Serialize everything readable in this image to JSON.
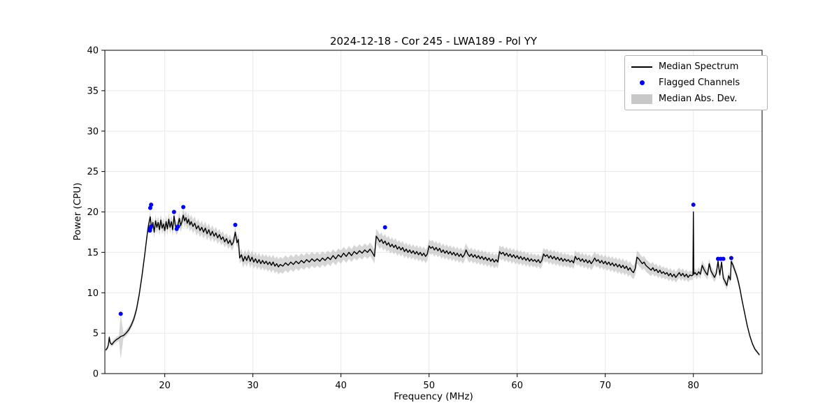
{
  "chart_data": {
    "type": "line",
    "title": "2024-12-18 - Cor 245 - LWA189 - Pol YY",
    "xlabel": "Frequency (MHz)",
    "ylabel": "Power (CPU)",
    "xlim": [
      13.2,
      87.8
    ],
    "ylim": [
      0,
      40
    ],
    "xticks": [
      20,
      30,
      40,
      50,
      60,
      70,
      80
    ],
    "yticks": [
      0,
      5,
      10,
      15,
      20,
      25,
      30,
      35,
      40
    ],
    "grid": true,
    "legend_position": "upper right",
    "colors": {
      "line": "#000000",
      "flagged": "#0000ff",
      "band": "#b5b5b5",
      "grid": "#e8e8e8"
    },
    "legend": [
      {
        "label": "Median Spectrum",
        "type": "line",
        "color": "#000000"
      },
      {
        "label": "Flagged Channels",
        "type": "dot",
        "color": "#0000ff"
      },
      {
        "label": "Median Abs. Dev.",
        "type": "patch",
        "color": "#b5b5b5"
      }
    ],
    "median_spectrum": [
      [
        13.3,
        2.9
      ],
      [
        13.5,
        3.2
      ],
      [
        13.6,
        3.6
      ],
      [
        13.7,
        4.5
      ],
      [
        13.8,
        3.8
      ],
      [
        14.0,
        3.6
      ],
      [
        14.2,
        3.9
      ],
      [
        14.5,
        4.2
      ],
      [
        14.8,
        4.4
      ],
      [
        15.0,
        4.6
      ],
      [
        15.3,
        4.7
      ],
      [
        15.6,
        5.0
      ],
      [
        15.9,
        5.4
      ],
      [
        16.2,
        6.0
      ],
      [
        16.5,
        6.8
      ],
      [
        16.8,
        8.0
      ],
      [
        17.1,
        9.8
      ],
      [
        17.4,
        12.0
      ],
      [
        17.7,
        14.5
      ],
      [
        17.9,
        16.3
      ],
      [
        18.0,
        17.2
      ],
      [
        18.1,
        18.0
      ],
      [
        18.2,
        18.6
      ],
      [
        18.35,
        19.4
      ],
      [
        18.5,
        17.9
      ],
      [
        18.65,
        18.7
      ],
      [
        18.8,
        17.5
      ],
      [
        18.95,
        18.9
      ],
      [
        19.1,
        18.1
      ],
      [
        19.25,
        18.7
      ],
      [
        19.4,
        17.8
      ],
      [
        19.55,
        19.0
      ],
      [
        19.7,
        18.0
      ],
      [
        19.85,
        18.5
      ],
      [
        20.0,
        17.7
      ],
      [
        20.15,
        18.8
      ],
      [
        20.3,
        17.9
      ],
      [
        20.45,
        19.1
      ],
      [
        20.6,
        18.1
      ],
      [
        20.75,
        18.8
      ],
      [
        20.9,
        17.8
      ],
      [
        21.05,
        19.5
      ],
      [
        21.2,
        18.3
      ],
      [
        21.35,
        17.9
      ],
      [
        21.5,
        18.4
      ],
      [
        21.65,
        19.2
      ],
      [
        21.8,
        18.3
      ],
      [
        21.95,
        18.8
      ],
      [
        22.1,
        19.6
      ],
      [
        22.25,
        18.9
      ],
      [
        22.4,
        19.3
      ],
      [
        22.55,
        18.6
      ],
      [
        22.7,
        19.1
      ],
      [
        22.85,
        18.4
      ],
      [
        23.0,
        18.8
      ],
      [
        23.2,
        18.2
      ],
      [
        23.4,
        18.6
      ],
      [
        23.6,
        17.9
      ],
      [
        23.8,
        18.3
      ],
      [
        24.0,
        17.7
      ],
      [
        24.2,
        18.1
      ],
      [
        24.4,
        17.5
      ],
      [
        24.6,
        18.0
      ],
      [
        24.8,
        17.3
      ],
      [
        25.0,
        17.8
      ],
      [
        25.2,
        17.1
      ],
      [
        25.4,
        17.6
      ],
      [
        25.6,
        17.0
      ],
      [
        25.8,
        17.4
      ],
      [
        26.0,
        16.8
      ],
      [
        26.2,
        17.2
      ],
      [
        26.4,
        16.6
      ],
      [
        26.6,
        16.9
      ],
      [
        26.8,
        16.3
      ],
      [
        27.0,
        16.7
      ],
      [
        27.2,
        16.1
      ],
      [
        27.4,
        16.5
      ],
      [
        27.6,
        15.9
      ],
      [
        27.8,
        16.3
      ],
      [
        28.0,
        17.5
      ],
      [
        28.2,
        16.2
      ],
      [
        28.35,
        16.6
      ],
      [
        28.5,
        14.3
      ],
      [
        28.7,
        14.7
      ],
      [
        28.9,
        13.9
      ],
      [
        29.1,
        14.5
      ],
      [
        29.3,
        14.0
      ],
      [
        29.5,
        14.6
      ],
      [
        29.7,
        13.9
      ],
      [
        29.9,
        14.4
      ],
      [
        30.1,
        13.8
      ],
      [
        30.3,
        14.2
      ],
      [
        30.5,
        13.7
      ],
      [
        30.7,
        14.1
      ],
      [
        30.9,
        13.6
      ],
      [
        31.1,
        14.0
      ],
      [
        31.3,
        13.6
      ],
      [
        31.5,
        13.9
      ],
      [
        31.7,
        13.5
      ],
      [
        31.9,
        13.8
      ],
      [
        32.1,
        13.4
      ],
      [
        32.3,
        13.8
      ],
      [
        32.5,
        13.3
      ],
      [
        32.7,
        13.6
      ],
      [
        32.9,
        13.2
      ],
      [
        33.1,
        13.5
      ],
      [
        33.4,
        13.3
      ],
      [
        33.7,
        13.7
      ],
      [
        34.0,
        13.4
      ],
      [
        34.3,
        13.8
      ],
      [
        34.6,
        13.5
      ],
      [
        34.9,
        13.9
      ],
      [
        35.2,
        13.6
      ],
      [
        35.5,
        14.0
      ],
      [
        35.8,
        13.7
      ],
      [
        36.1,
        14.1
      ],
      [
        36.4,
        13.8
      ],
      [
        36.7,
        14.2
      ],
      [
        37.0,
        13.9
      ],
      [
        37.3,
        14.2
      ],
      [
        37.6,
        13.9
      ],
      [
        37.9,
        14.3
      ],
      [
        38.2,
        14.0
      ],
      [
        38.5,
        14.4
      ],
      [
        38.8,
        14.1
      ],
      [
        39.1,
        14.6
      ],
      [
        39.4,
        14.2
      ],
      [
        39.7,
        14.7
      ],
      [
        40.0,
        14.4
      ],
      [
        40.3,
        14.9
      ],
      [
        40.6,
        14.5
      ],
      [
        40.9,
        15.0
      ],
      [
        41.2,
        14.6
      ],
      [
        41.5,
        15.1
      ],
      [
        41.8,
        14.8
      ],
      [
        42.1,
        15.2
      ],
      [
        42.4,
        14.9
      ],
      [
        42.7,
        15.3
      ],
      [
        43.0,
        15.0
      ],
      [
        43.3,
        15.4
      ],
      [
        43.6,
        14.9
      ],
      [
        43.8,
        14.5
      ],
      [
        44.0,
        17.0
      ],
      [
        44.2,
        16.7
      ],
      [
        44.4,
        16.3
      ],
      [
        44.6,
        16.6
      ],
      [
        44.8,
        16.1
      ],
      [
        45.0,
        16.4
      ],
      [
        45.2,
        15.9
      ],
      [
        45.4,
        16.2
      ],
      [
        45.6,
        15.7
      ],
      [
        45.8,
        16.0
      ],
      [
        46.0,
        15.6
      ],
      [
        46.2,
        15.9
      ],
      [
        46.4,
        15.4
      ],
      [
        46.6,
        15.7
      ],
      [
        46.8,
        15.3
      ],
      [
        47.0,
        15.6
      ],
      [
        47.2,
        15.1
      ],
      [
        47.4,
        15.4
      ],
      [
        47.6,
        15.0
      ],
      [
        47.8,
        15.3
      ],
      [
        48.0,
        14.9
      ],
      [
        48.2,
        15.2
      ],
      [
        48.4,
        14.8
      ],
      [
        48.6,
        15.1
      ],
      [
        48.8,
        14.7
      ],
      [
        49.0,
        15.0
      ],
      [
        49.2,
        14.6
      ],
      [
        49.4,
        14.9
      ],
      [
        49.6,
        14.5
      ],
      [
        49.8,
        14.8
      ],
      [
        50.0,
        15.8
      ],
      [
        50.2,
        15.5
      ],
      [
        50.4,
        15.7
      ],
      [
        50.6,
        15.3
      ],
      [
        50.8,
        15.6
      ],
      [
        51.0,
        15.2
      ],
      [
        51.2,
        15.5
      ],
      [
        51.4,
        15.0
      ],
      [
        51.6,
        15.3
      ],
      [
        51.8,
        14.9
      ],
      [
        52.0,
        15.2
      ],
      [
        52.2,
        14.8
      ],
      [
        52.4,
        15.1
      ],
      [
        52.6,
        14.7
      ],
      [
        52.8,
        15.0
      ],
      [
        53.0,
        14.6
      ],
      [
        53.2,
        14.9
      ],
      [
        53.4,
        14.5
      ],
      [
        53.6,
        14.8
      ],
      [
        53.8,
        14.4
      ],
      [
        54.0,
        14.7
      ],
      [
        54.2,
        15.3
      ],
      [
        54.4,
        14.8
      ],
      [
        54.6,
        14.5
      ],
      [
        54.8,
        14.8
      ],
      [
        55.0,
        14.4
      ],
      [
        55.2,
        14.7
      ],
      [
        55.4,
        14.3
      ],
      [
        55.6,
        14.6
      ],
      [
        55.8,
        14.2
      ],
      [
        56.0,
        14.5
      ],
      [
        56.2,
        14.1
      ],
      [
        56.4,
        14.4
      ],
      [
        56.6,
        14.0
      ],
      [
        56.8,
        14.3
      ],
      [
        57.0,
        13.9
      ],
      [
        57.2,
        14.2
      ],
      [
        57.4,
        13.8
      ],
      [
        57.6,
        14.1
      ],
      [
        57.8,
        13.8
      ],
      [
        58.0,
        15.1
      ],
      [
        58.2,
        14.8
      ],
      [
        58.4,
        15.0
      ],
      [
        58.6,
        14.6
      ],
      [
        58.8,
        14.9
      ],
      [
        59.0,
        14.5
      ],
      [
        59.2,
        14.8
      ],
      [
        59.4,
        14.4
      ],
      [
        59.6,
        14.7
      ],
      [
        59.8,
        14.3
      ],
      [
        60.0,
        14.6
      ],
      [
        60.2,
        14.2
      ],
      [
        60.4,
        14.5
      ],
      [
        60.6,
        14.1
      ],
      [
        60.8,
        14.4
      ],
      [
        61.0,
        14.0
      ],
      [
        61.2,
        14.3
      ],
      [
        61.4,
        13.9
      ],
      [
        61.6,
        14.2
      ],
      [
        61.8,
        13.9
      ],
      [
        62.0,
        14.1
      ],
      [
        62.2,
        13.8
      ],
      [
        62.4,
        14.1
      ],
      [
        62.6,
        13.7
      ],
      [
        62.8,
        14.0
      ],
      [
        63.0,
        14.8
      ],
      [
        63.2,
        14.5
      ],
      [
        63.4,
        14.7
      ],
      [
        63.6,
        14.3
      ],
      [
        63.8,
        14.6
      ],
      [
        64.0,
        14.2
      ],
      [
        64.2,
        14.5
      ],
      [
        64.4,
        14.1
      ],
      [
        64.6,
        14.4
      ],
      [
        64.8,
        14.0
      ],
      [
        65.0,
        14.3
      ],
      [
        65.2,
        13.9
      ],
      [
        65.4,
        14.2
      ],
      [
        65.6,
        13.9
      ],
      [
        65.8,
        14.1
      ],
      [
        66.0,
        13.8
      ],
      [
        66.2,
        14.0
      ],
      [
        66.4,
        13.7
      ],
      [
        66.6,
        14.5
      ],
      [
        66.8,
        14.1
      ],
      [
        67.0,
        14.3
      ],
      [
        67.2,
        13.9
      ],
      [
        67.4,
        14.2
      ],
      [
        67.6,
        13.8
      ],
      [
        67.8,
        14.1
      ],
      [
        68.0,
        13.7
      ],
      [
        68.2,
        14.0
      ],
      [
        68.4,
        13.6
      ],
      [
        68.6,
        13.9
      ],
      [
        68.8,
        14.3
      ],
      [
        69.0,
        13.9
      ],
      [
        69.2,
        14.1
      ],
      [
        69.4,
        13.7
      ],
      [
        69.6,
        14.0
      ],
      [
        69.8,
        13.6
      ],
      [
        70.0,
        13.9
      ],
      [
        70.2,
        13.5
      ],
      [
        70.4,
        13.8
      ],
      [
        70.6,
        13.4
      ],
      [
        70.8,
        13.7
      ],
      [
        71.0,
        13.3
      ],
      [
        71.2,
        13.6
      ],
      [
        71.4,
        13.2
      ],
      [
        71.6,
        13.5
      ],
      [
        71.8,
        13.1
      ],
      [
        72.0,
        13.4
      ],
      [
        72.2,
        13.0
      ],
      [
        72.4,
        13.3
      ],
      [
        72.6,
        12.8
      ],
      [
        72.8,
        13.1
      ],
      [
        73.0,
        12.7
      ],
      [
        73.2,
        12.5
      ],
      [
        73.4,
        13.0
      ],
      [
        73.6,
        14.4
      ],
      [
        73.8,
        14.2
      ],
      [
        74.0,
        13.9
      ],
      [
        74.2,
        13.6
      ],
      [
        74.4,
        13.8
      ],
      [
        74.6,
        13.4
      ],
      [
        74.8,
        13.2
      ],
      [
        75.0,
        13.0
      ],
      [
        75.2,
        12.8
      ],
      [
        75.4,
        13.1
      ],
      [
        75.6,
        12.7
      ],
      [
        75.8,
        12.9
      ],
      [
        76.0,
        12.5
      ],
      [
        76.2,
        12.8
      ],
      [
        76.4,
        12.4
      ],
      [
        76.6,
        12.6
      ],
      [
        76.8,
        12.3
      ],
      [
        77.0,
        12.5
      ],
      [
        77.2,
        12.1
      ],
      [
        77.4,
        12.4
      ],
      [
        77.6,
        12.0
      ],
      [
        77.8,
        12.3
      ],
      [
        78.0,
        11.9
      ],
      [
        78.2,
        12.2
      ],
      [
        78.4,
        12.5
      ],
      [
        78.6,
        12.1
      ],
      [
        78.8,
        12.4
      ],
      [
        79.0,
        12.0
      ],
      [
        79.2,
        12.3
      ],
      [
        79.4,
        11.9
      ],
      [
        79.6,
        12.2
      ],
      [
        79.8,
        12.1
      ],
      [
        79.95,
        12.2
      ],
      [
        80.0,
        20.0
      ],
      [
        80.05,
        12.3
      ],
      [
        80.2,
        12.5
      ],
      [
        80.4,
        12.2
      ],
      [
        80.6,
        12.6
      ],
      [
        80.8,
        12.3
      ],
      [
        81.0,
        13.4
      ],
      [
        81.2,
        12.9
      ],
      [
        81.4,
        12.5
      ],
      [
        81.6,
        12.2
      ],
      [
        81.8,
        13.6
      ],
      [
        82.0,
        12.7
      ],
      [
        82.2,
        12.3
      ],
      [
        82.4,
        11.9
      ],
      [
        82.6,
        12.4
      ],
      [
        82.8,
        13.9
      ],
      [
        83.0,
        12.2
      ],
      [
        83.2,
        13.8
      ],
      [
        83.4,
        11.8
      ],
      [
        83.6,
        11.4
      ],
      [
        83.8,
        10.9
      ],
      [
        84.0,
        12.1
      ],
      [
        84.2,
        11.6
      ],
      [
        84.3,
        13.9
      ],
      [
        84.5,
        13.4
      ],
      [
        84.7,
        12.8
      ],
      [
        84.9,
        12.2
      ],
      [
        85.1,
        11.4
      ],
      [
        85.3,
        10.4
      ],
      [
        85.5,
        9.2
      ],
      [
        85.8,
        7.6
      ],
      [
        86.1,
        6.0
      ],
      [
        86.4,
        4.7
      ],
      [
        86.7,
        3.7
      ],
      [
        87.0,
        3.0
      ],
      [
        87.3,
        2.6
      ],
      [
        87.5,
        2.3
      ]
    ],
    "flagged_channels": [
      [
        15.0,
        7.4
      ],
      [
        18.3,
        17.7
      ],
      [
        18.35,
        18.0
      ],
      [
        18.45,
        18.2
      ],
      [
        18.35,
        20.5
      ],
      [
        18.45,
        20.9
      ],
      [
        21.05,
        20.0
      ],
      [
        21.35,
        17.9
      ],
      [
        21.5,
        18.2
      ],
      [
        22.1,
        20.6
      ],
      [
        28.0,
        18.4
      ],
      [
        45.0,
        18.1
      ],
      [
        80.0,
        20.9
      ],
      [
        82.8,
        14.2
      ],
      [
        83.1,
        14.2
      ],
      [
        83.4,
        14.2
      ],
      [
        84.3,
        14.3
      ]
    ],
    "mad_halfwidth": [
      [
        13.2,
        0.2
      ],
      [
        14.0,
        0.3
      ],
      [
        14.8,
        0.35
      ],
      [
        15.0,
        2.8
      ],
      [
        15.2,
        0.35
      ],
      [
        16.0,
        0.4
      ],
      [
        17.0,
        0.5
      ],
      [
        18.0,
        0.6
      ],
      [
        19.0,
        0.75
      ],
      [
        21.0,
        0.8
      ],
      [
        23.0,
        0.85
      ],
      [
        25.0,
        0.8
      ],
      [
        27.0,
        0.7
      ],
      [
        28.4,
        0.7
      ],
      [
        29.0,
        0.8
      ],
      [
        31.0,
        0.85
      ],
      [
        33.0,
        0.95
      ],
      [
        35.0,
        0.9
      ],
      [
        37.0,
        0.85
      ],
      [
        39.0,
        0.8
      ],
      [
        41.0,
        0.8
      ],
      [
        43.0,
        0.8
      ],
      [
        44.0,
        0.9
      ],
      [
        46.0,
        0.85
      ],
      [
        48.0,
        0.8
      ],
      [
        50.0,
        0.85
      ],
      [
        52.0,
        0.8
      ],
      [
        54.0,
        0.8
      ],
      [
        56.0,
        0.8
      ],
      [
        58.0,
        0.8
      ],
      [
        60.0,
        0.8
      ],
      [
        62.0,
        0.75
      ],
      [
        64.0,
        0.8
      ],
      [
        66.0,
        0.75
      ],
      [
        68.0,
        0.8
      ],
      [
        70.0,
        0.8
      ],
      [
        72.0,
        0.85
      ],
      [
        74.0,
        0.8
      ],
      [
        76.0,
        0.7
      ],
      [
        78.0,
        0.65
      ],
      [
        79.5,
        0.6
      ],
      [
        80.0,
        0.5
      ],
      [
        81.0,
        0.6
      ],
      [
        82.0,
        0.6
      ],
      [
        83.0,
        0.55
      ],
      [
        84.0,
        0.5
      ],
      [
        85.0,
        0.45
      ],
      [
        86.0,
        0.3
      ],
      [
        87.0,
        0.2
      ],
      [
        87.5,
        0.15
      ]
    ]
  }
}
